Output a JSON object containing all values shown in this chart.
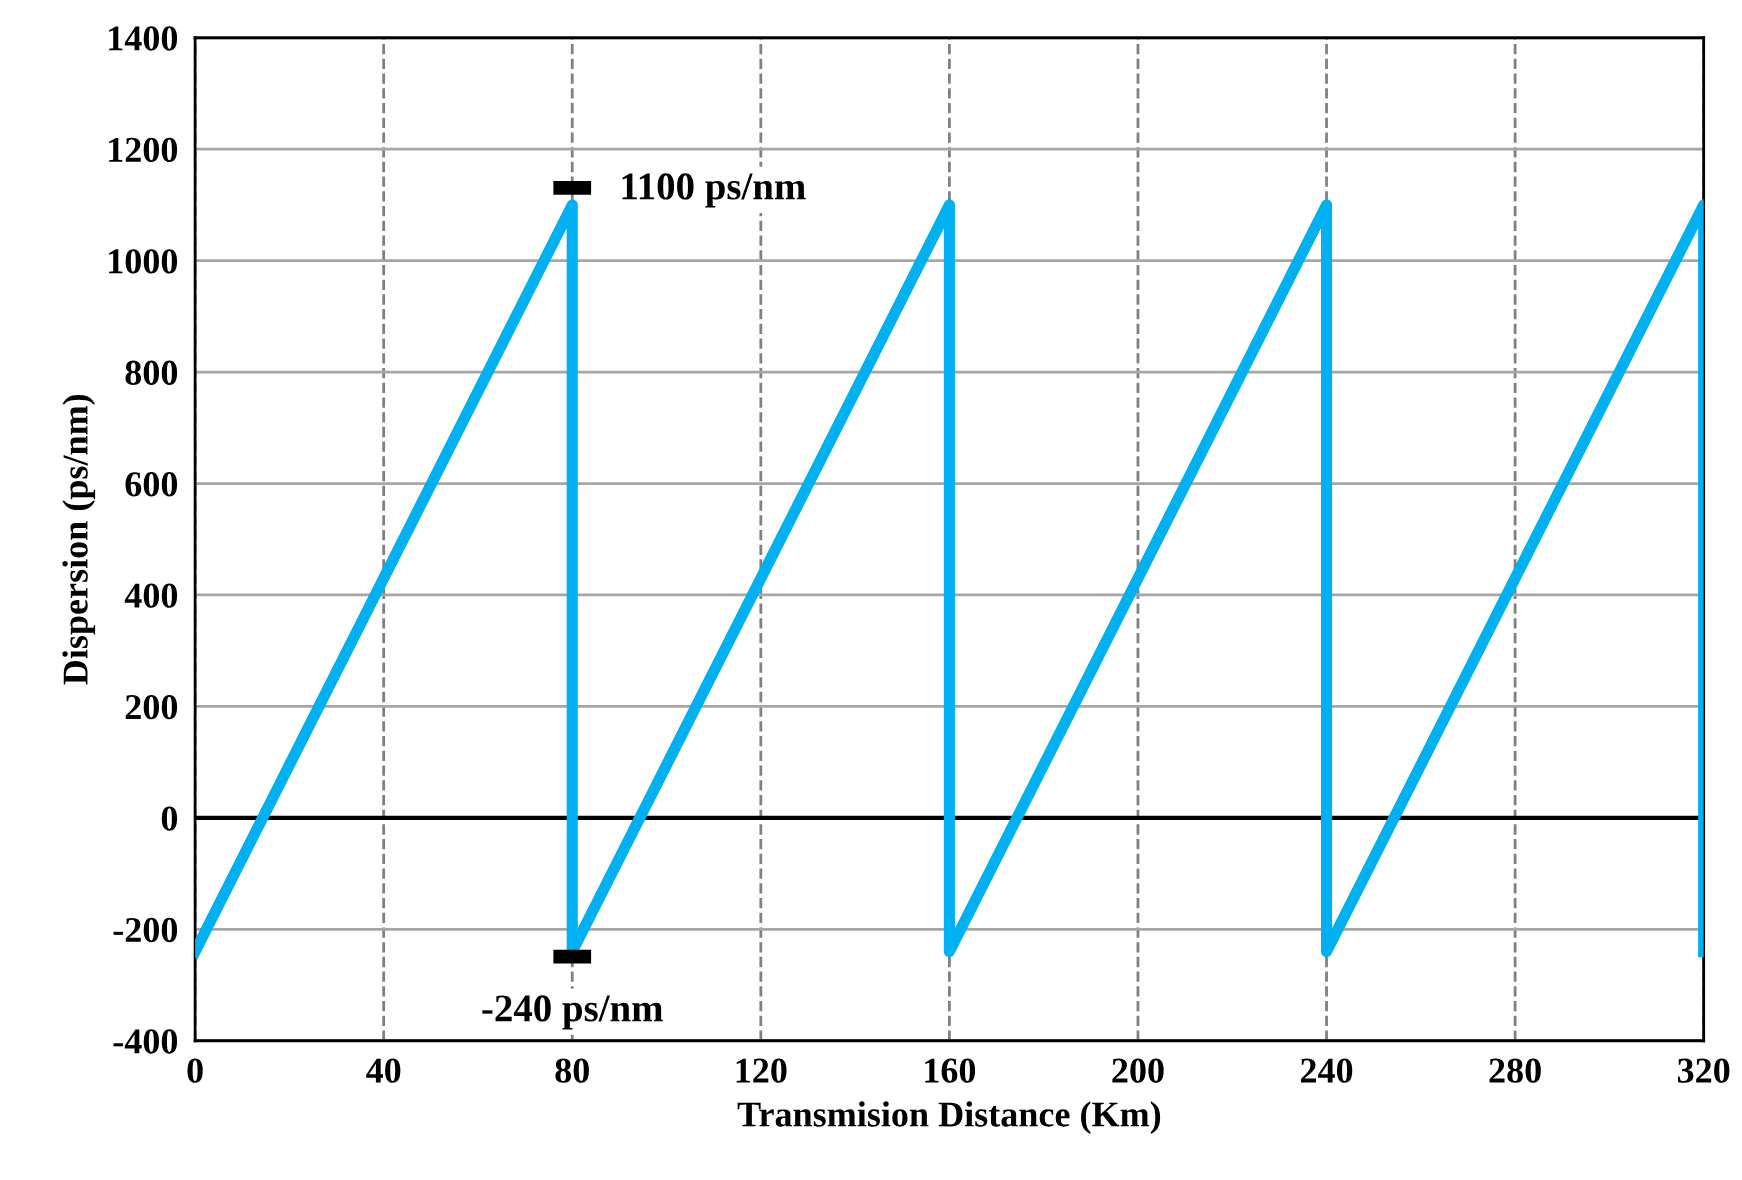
{
  "chart_data": {
    "type": "line",
    "xlabel": "Transmision Distance (Km)",
    "ylabel": "Dispersion (ps/nm)",
    "x": [
      0,
      80,
      80,
      160,
      160,
      240,
      240,
      320,
      320
    ],
    "series": [
      {
        "color": "#00b0f0",
        "values": [
          -240,
          1100,
          -240,
          1100,
          -240,
          1100,
          -240,
          1100,
          -240
        ]
      }
    ],
    "xlim": [
      0,
      320
    ],
    "xticks": [
      0,
      40,
      80,
      120,
      160,
      200,
      240,
      280,
      320
    ],
    "ylim": [
      -400,
      1400
    ],
    "yticks": [
      -400,
      -200,
      0,
      200,
      400,
      600,
      800,
      1000,
      1200,
      1400
    ],
    "grid": true,
    "legend": false,
    "marker": "none",
    "line_style": "solid",
    "ref_lines": [
      {
        "axis": "y",
        "value": 0,
        "color": "#000000"
      }
    ],
    "annotations": [
      {
        "text": "1100 ps/nm",
        "x": 80,
        "y": 1100
      },
      {
        "text": "-240 ps/nm",
        "x": 80,
        "y": -240
      }
    ]
  }
}
